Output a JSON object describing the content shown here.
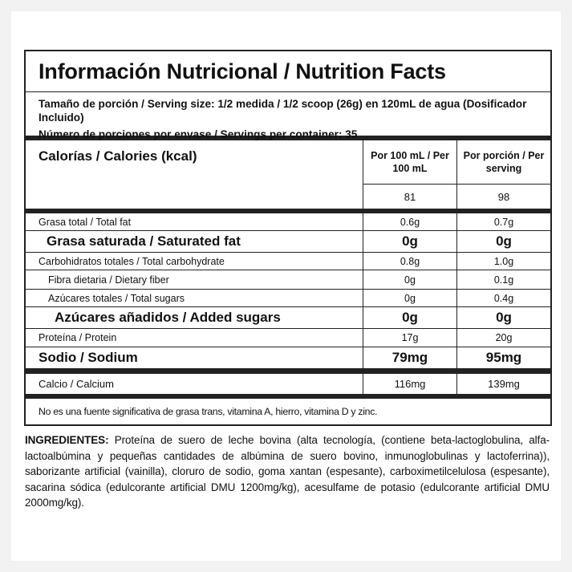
{
  "title": "Información Nutricional / Nutrition Facts",
  "serving_size": "Tamaño de porción / Serving size: 1/2 medida / 1/2 scoop (26g) en 120mL de agua (Dosificador Incluido)",
  "servings_per_container": "Número de porciones por envase / Servings per container: 35",
  "calories": {
    "label": "Calorías / Calories (kcal)",
    "col1_header": "Por 100 mL / Per 100 mL",
    "col2_header": "Por porción / Per serving",
    "per100": "81",
    "perserving": "98"
  },
  "nutrients": [
    {
      "label": "Grasa total / Total fat",
      "per100": "0.6g",
      "perserving": "0.7g"
    },
    {
      "label": "Grasa saturada / Saturated fat",
      "per100": "0g",
      "perserving": "0g"
    },
    {
      "label": "Carbohidratos totales / Total carbohydrate",
      "per100": "0.8g",
      "perserving": "1.0g"
    },
    {
      "label": "Fibra dietaria / Dietary fiber",
      "per100": "0g",
      "perserving": "0.1g"
    },
    {
      "label": "Azúcares totales / Total sugars",
      "per100": "0g",
      "perserving": "0.4g"
    },
    {
      "label": "Azúcares añadidos / Added sugars",
      "per100": "0g",
      "perserving": "0g"
    },
    {
      "label": "Proteína / Protein",
      "per100": "17g",
      "perserving": "20g"
    },
    {
      "label": "Sodio / Sodium",
      "per100": "79mg",
      "perserving": "95mg"
    }
  ],
  "calcium": {
    "label": "Calcio / Calcium",
    "per100": "116mg",
    "perserving": "139mg"
  },
  "note": "No es una fuente significativa de grasa trans, vitamina  A, hierro, vitamina D y zinc.",
  "ingredients": {
    "heading": "INGREDIENTES:",
    "text": "Proteína de suero de leche bovina (alta tecnología, (contiene beta-lactoglobulina, alfa-lactoalbúmina y pequeñas cantidades de albúmina de suero bovino, inmunoglobulinas y lactoferrina)), saborizante artificial (vainilla), cloruro de sodio, goma xantan (espesante), carboximetilcelulosa (espesante), sacarina sódica (edulcorante artificial DMU 1200mg/kg), acesulfame de potasio (edulcorante artificial DMU 2000mg/kg)."
  }
}
